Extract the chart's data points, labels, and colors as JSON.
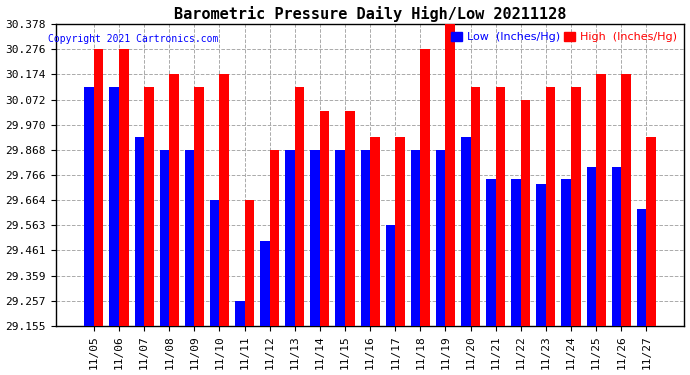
{
  "title": "Barometric Pressure Daily High/Low 20211128",
  "copyright": "Copyright 2021 Cartronics.com",
  "legend_low": "Low  (Inches/Hg)",
  "legend_high": "High  (Inches/Hg)",
  "dates": [
    "11/05",
    "11/06",
    "11/07",
    "11/08",
    "11/09",
    "11/10",
    "11/11",
    "11/12",
    "11/13",
    "11/14",
    "11/15",
    "11/16",
    "11/17",
    "11/18",
    "11/19",
    "11/20",
    "11/21",
    "11/22",
    "11/23",
    "11/24",
    "11/25",
    "11/26",
    "11/27"
  ],
  "high": [
    30.276,
    30.276,
    30.124,
    30.174,
    30.124,
    30.174,
    29.666,
    29.868,
    30.124,
    30.026,
    30.026,
    29.92,
    29.92,
    30.276,
    30.378,
    30.124,
    30.124,
    30.072,
    30.124,
    30.124,
    30.174,
    30.174,
    29.92
  ],
  "low": [
    30.124,
    30.124,
    29.92,
    29.868,
    29.868,
    29.666,
    29.257,
    29.5,
    29.868,
    29.868,
    29.868,
    29.868,
    29.563,
    29.868,
    29.868,
    29.92,
    29.75,
    29.75,
    29.73,
    29.75,
    29.8,
    29.8,
    29.63
  ],
  "ylim_min": 29.155,
  "ylim_max": 30.378,
  "yticks": [
    29.155,
    29.257,
    29.359,
    29.461,
    29.563,
    29.664,
    29.766,
    29.868,
    29.97,
    30.072,
    30.174,
    30.276,
    30.378
  ],
  "bar_color_low": "#0000ff",
  "bar_color_high": "#ff0000",
  "bg_color": "#ffffff",
  "grid_color": "#aaaaaa",
  "title_color": "#000000",
  "title_fontsize": 11,
  "tick_fontsize": 8,
  "bar_width": 0.38
}
